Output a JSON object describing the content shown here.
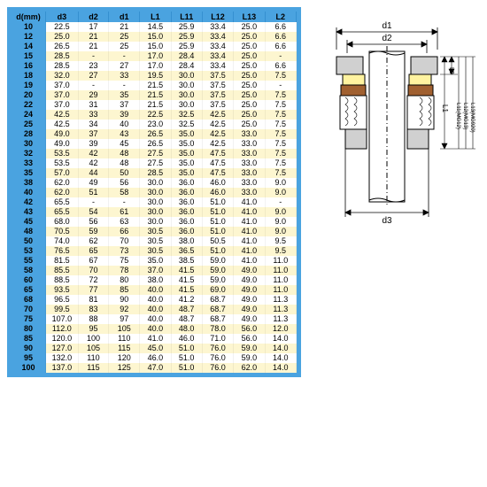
{
  "table": {
    "headers": [
      "d(mm)",
      "d3",
      "d2",
      "d1",
      "L1",
      "L11",
      "L12",
      "L13",
      "L2"
    ],
    "rows": [
      [
        "10",
        "22.5",
        "17",
        "21",
        "14.5",
        "25.9",
        "33.4",
        "25.0",
        "6.6"
      ],
      [
        "12",
        "25.0",
        "21",
        "25",
        "15.0",
        "25.9",
        "33.4",
        "25.0",
        "6.6"
      ],
      [
        "14",
        "26.5",
        "21",
        "25",
        "15.0",
        "25.9",
        "33.4",
        "25.0",
        "6.6"
      ],
      [
        "15",
        "28.5",
        "-",
        "-",
        "17.0",
        "28.4",
        "33.4",
        "25.0",
        "-"
      ],
      [
        "16",
        "28.5",
        "23",
        "27",
        "17.0",
        "28.4",
        "33.4",
        "25.0",
        "6.6"
      ],
      [
        "18",
        "32.0",
        "27",
        "33",
        "19.5",
        "30.0",
        "37.5",
        "25.0",
        "7.5"
      ],
      [
        "19",
        "37.0",
        "-",
        "-",
        "21.5",
        "30.0",
        "37.5",
        "25.0",
        "-"
      ],
      [
        "20",
        "37.0",
        "29",
        "35",
        "21.5",
        "30.0",
        "37.5",
        "25.0",
        "7.5"
      ],
      [
        "22",
        "37.0",
        "31",
        "37",
        "21.5",
        "30.0",
        "37.5",
        "25.0",
        "7.5"
      ],
      [
        "24",
        "42.5",
        "33",
        "39",
        "22.5",
        "32.5",
        "42.5",
        "25.0",
        "7.5"
      ],
      [
        "25",
        "42.5",
        "34",
        "40",
        "23.0",
        "32.5",
        "42.5",
        "25.0",
        "7.5"
      ],
      [
        "28",
        "49.0",
        "37",
        "43",
        "26.5",
        "35.0",
        "42.5",
        "33.0",
        "7.5"
      ],
      [
        "30",
        "49.0",
        "39",
        "45",
        "26.5",
        "35.0",
        "42.5",
        "33.0",
        "7.5"
      ],
      [
        "32",
        "53.5",
        "42",
        "48",
        "27.5",
        "35.0",
        "47.5",
        "33.0",
        "7.5"
      ],
      [
        "33",
        "53.5",
        "42",
        "48",
        "27.5",
        "35.0",
        "47.5",
        "33.0",
        "7.5"
      ],
      [
        "35",
        "57.0",
        "44",
        "50",
        "28.5",
        "35.0",
        "47.5",
        "33.0",
        "7.5"
      ],
      [
        "38",
        "62.0",
        "49",
        "56",
        "30.0",
        "36.0",
        "46.0",
        "33.0",
        "9.0"
      ],
      [
        "40",
        "62.0",
        "51",
        "58",
        "30.0",
        "36.0",
        "46.0",
        "33.0",
        "9.0"
      ],
      [
        "42",
        "65.5",
        "-",
        "-",
        "30.0",
        "36.0",
        "51.0",
        "41.0",
        "-"
      ],
      [
        "43",
        "65.5",
        "54",
        "61",
        "30.0",
        "36.0",
        "51.0",
        "41.0",
        "9.0"
      ],
      [
        "45",
        "68.0",
        "56",
        "63",
        "30.0",
        "36.0",
        "51.0",
        "41.0",
        "9.0"
      ],
      [
        "48",
        "70.5",
        "59",
        "66",
        "30.5",
        "36.0",
        "51.0",
        "41.0",
        "9.0"
      ],
      [
        "50",
        "74.0",
        "62",
        "70",
        "30.5",
        "38.0",
        "50.5",
        "41.0",
        "9.5"
      ],
      [
        "53",
        "76.5",
        "65",
        "73",
        "30.5",
        "36.5",
        "51.0",
        "41.0",
        "9.5"
      ],
      [
        "55",
        "81.5",
        "67",
        "75",
        "35.0",
        "38.5",
        "59.0",
        "41.0",
        "11.0"
      ],
      [
        "58",
        "85.5",
        "70",
        "78",
        "37.0",
        "41.5",
        "59.0",
        "49.0",
        "11.0"
      ],
      [
        "60",
        "88.5",
        "72",
        "80",
        "38.0",
        "41.5",
        "59.0",
        "49.0",
        "11.0"
      ],
      [
        "65",
        "93.5",
        "77",
        "85",
        "40.0",
        "41.5",
        "69.0",
        "49.0",
        "11.0"
      ],
      [
        "68",
        "96.5",
        "81",
        "90",
        "40.0",
        "41.2",
        "68.7",
        "49.0",
        "11.3"
      ],
      [
        "70",
        "99.5",
        "83",
        "92",
        "40.0",
        "48.7",
        "68.7",
        "49.0",
        "11.3"
      ],
      [
        "75",
        "107.0",
        "88",
        "97",
        "40.0",
        "48.7",
        "68.7",
        "49.0",
        "11.3"
      ],
      [
        "80",
        "112.0",
        "95",
        "105",
        "40.0",
        "48.0",
        "78.0",
        "56.0",
        "12.0"
      ],
      [
        "85",
        "120.0",
        "100",
        "110",
        "41.0",
        "46.0",
        "71.0",
        "56.0",
        "14.0"
      ],
      [
        "90",
        "127.0",
        "105",
        "115",
        "45.0",
        "51.0",
        "76.0",
        "59.0",
        "14.0"
      ],
      [
        "95",
        "132.0",
        "110",
        "120",
        "46.0",
        "51.0",
        "76.0",
        "59.0",
        "14.0"
      ],
      [
        "100",
        "137.0",
        "115",
        "125",
        "47.0",
        "51.0",
        "76.0",
        "62.0",
        "14.0"
      ]
    ],
    "header_bg": "#4aa3e0",
    "row_white": "#ffffff",
    "row_yellow": "#fdf6d0",
    "border_color": "#4aa3e0"
  },
  "diagram": {
    "labels": {
      "d1": "d1",
      "d2": "d2",
      "d3": "d3",
      "l1": "L1",
      "l2": "L2",
      "l11": "L11(MG12)",
      "l12": "L12(MG13)",
      "l13": "L13(MG920)"
    },
    "stroke": "#000000",
    "fill_body": "#e8e8e8"
  }
}
